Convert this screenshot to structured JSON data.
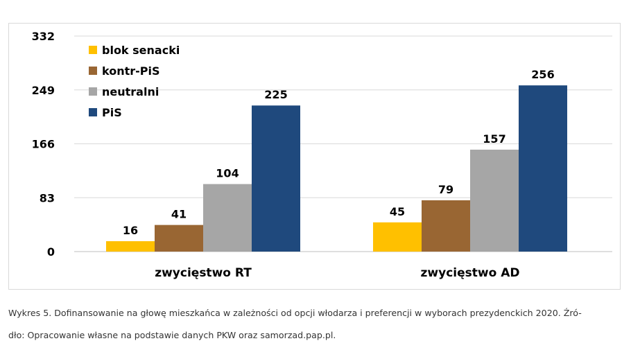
{
  "chart_data": {
    "type": "bar",
    "categories": [
      "zwycięstwo RT",
      "zwycięstwo AD"
    ],
    "series": [
      {
        "name": "blok senacki",
        "color": "#ffc000",
        "values": [
          16,
          45
        ]
      },
      {
        "name": "kontr-PiS",
        "color": "#996633",
        "values": [
          41,
          79
        ]
      },
      {
        "name": "neutralni",
        "color": "#a6a6a6",
        "values": [
          104,
          157
        ]
      },
      {
        "name": "PiS",
        "color": "#1f497d",
        "values": [
          225,
          256
        ]
      }
    ],
    "y_ticks": [
      "0",
      "83",
      "166",
      "249",
      "332"
    ],
    "ylim": [
      0,
      332
    ],
    "grid": true,
    "legend_position": "top-left",
    "data_labels": true
  },
  "caption": {
    "line1": "Wykres 5. Dofinansowanie na głowę mieszkańca w zależności od opcji włodarza i preferencji w wyborach prezydenckich 2020. Źró-",
    "line2": "dło: Opracowanie własne na podstawie danych PKW oraz samorzad.pap.pl."
  }
}
